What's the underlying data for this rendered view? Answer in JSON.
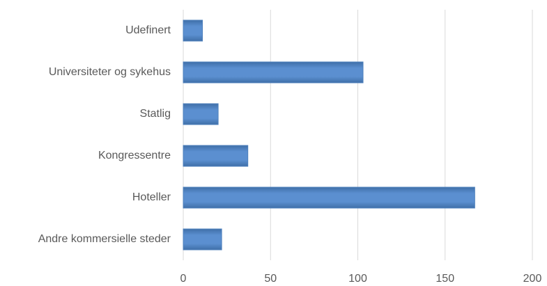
{
  "chart_data": {
    "type": "bar",
    "orientation": "horizontal",
    "categories": [
      "Udefinert",
      "Universiteter og sykehus",
      "Statlig",
      "Kongressentre",
      "Hoteller",
      "Andre kommersielle steder"
    ],
    "values": [
      11,
      103,
      20,
      37,
      167,
      22
    ],
    "color": "#4f81bd",
    "xlim": [
      0,
      200
    ],
    "xticks": [
      0,
      50,
      100,
      150,
      200
    ],
    "grid": true
  }
}
